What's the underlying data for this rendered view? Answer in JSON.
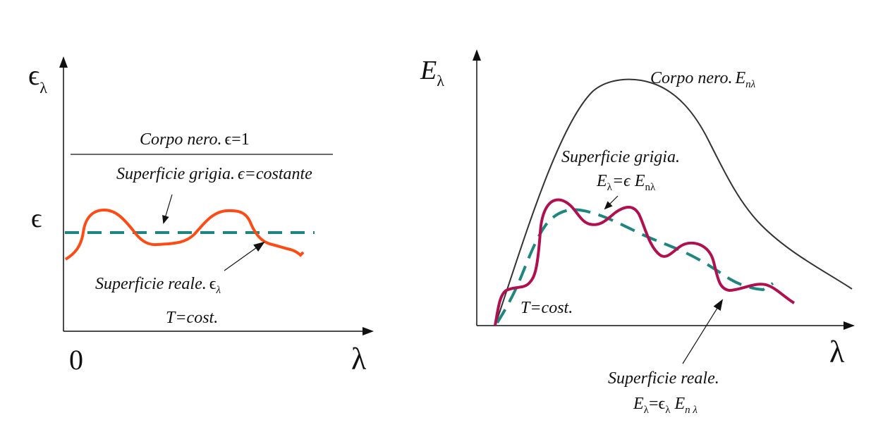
{
  "left_diagram": {
    "y_axis_label": "ϵ",
    "y_axis_sub": "λ",
    "origin_label": "0",
    "x_axis_label": "λ",
    "epsilon_tick": "ϵ",
    "black_body": {
      "text": "Corpo nero.",
      "formula": "ϵ=1"
    },
    "grey_surface": {
      "text": "Superficie grigia.",
      "formula": "ϵ=costante"
    },
    "real_surface": {
      "text": "Superficie reale.",
      "formula": "ϵ",
      "formula_sub": "λ"
    },
    "temperature": "T=cost."
  },
  "right_diagram": {
    "y_axis_label": "E",
    "y_axis_sub": "λ",
    "x_axis_label": "λ",
    "black_body": {
      "text": "Corpo nero.",
      "formula": "E",
      "formula_sub": "nλ"
    },
    "grey_surface": {
      "text": "Superficie grigia.",
      "f1": "E",
      "f1_sub": "λ",
      "f2": "=ϵ E",
      "f2_sub": "nλ"
    },
    "real_surface": {
      "text": "Superficie reale.",
      "f1": "E",
      "f1_sub": "λ",
      "f2": "=ϵ",
      "f2_sub": "λ",
      "f3": " E",
      "f3_sub": "n λ"
    },
    "temperature": "T=cost."
  },
  "colors": {
    "axis": "#111111",
    "black_body_curve": "#333333",
    "grey_curve": "#1f8580",
    "real_curve_left": "#ff4a14",
    "real_curve_right": "#b0104f"
  }
}
